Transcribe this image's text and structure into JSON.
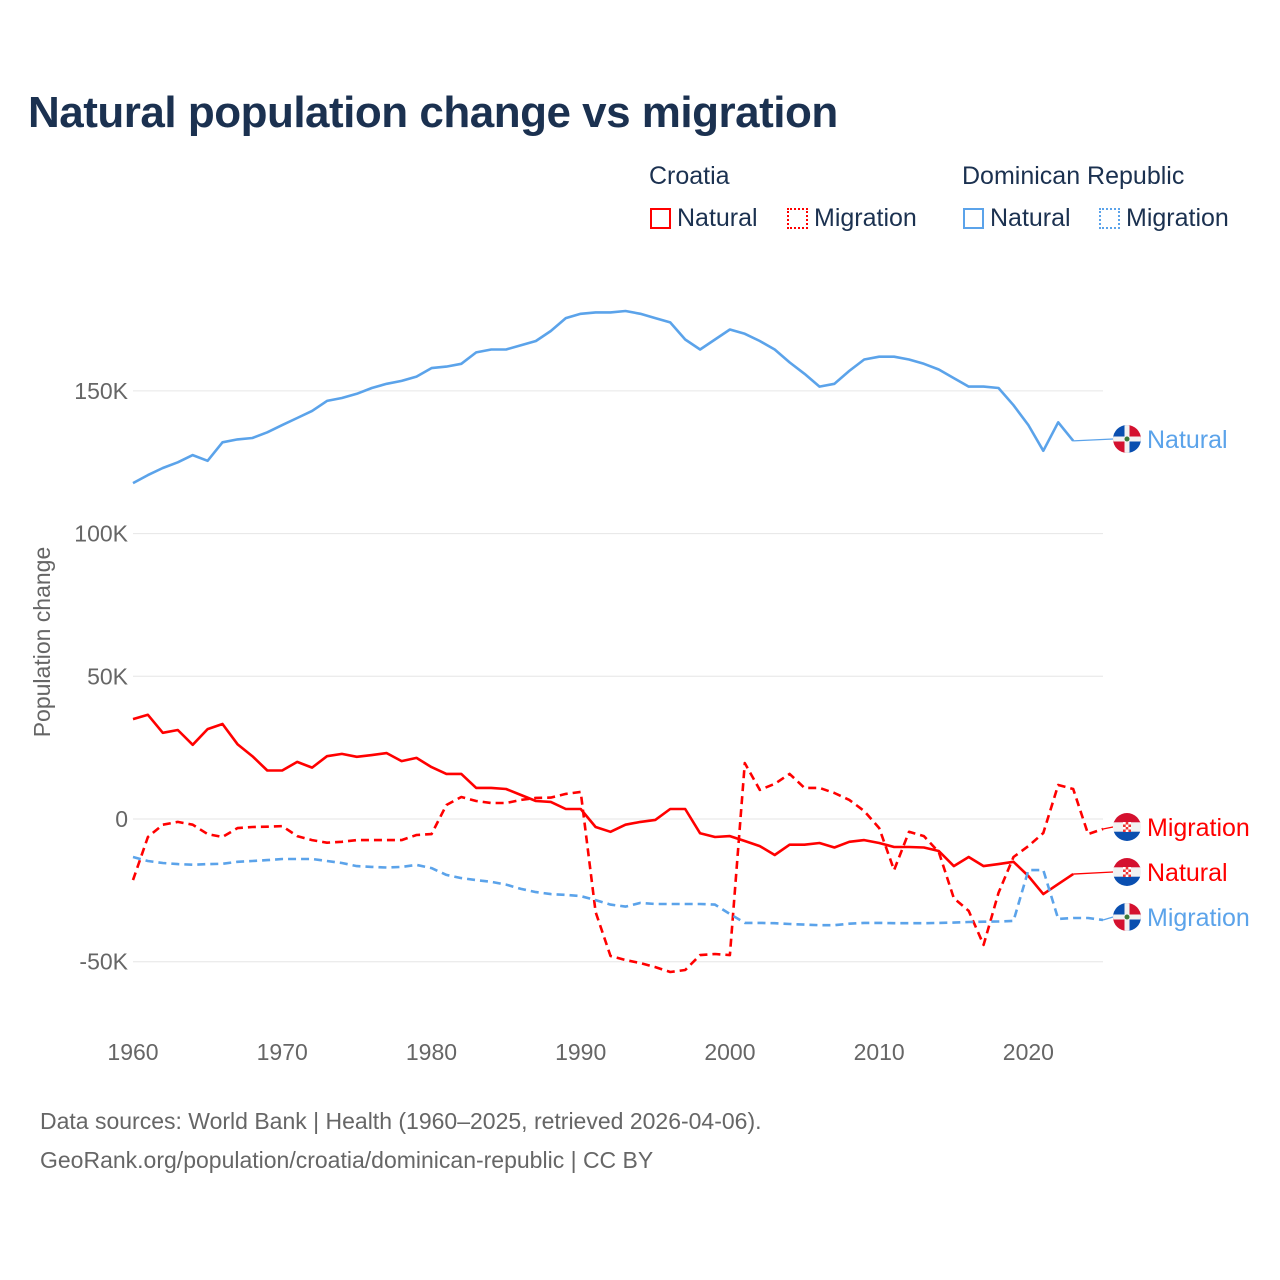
{
  "title": "Natural population change vs migration",
  "legend": {
    "groups": [
      {
        "name": "Croatia",
        "items": [
          {
            "label": "Natural",
            "style": "solid"
          },
          {
            "label": "Migration",
            "style": "dotted"
          }
        ],
        "color": "#ff0000"
      },
      {
        "name": "Dominican Republic",
        "items": [
          {
            "label": "Natural",
            "style": "solid"
          },
          {
            "label": "Migration",
            "style": "dotted"
          }
        ],
        "color": "#5ba3ea"
      }
    ]
  },
  "footer": {
    "line1": "Data sources: World Bank | Health (1960–2025, retrieved 2026-04-06).",
    "line2": "GeoRank.org/population/croatia/dominican-republic | CC BY"
  },
  "chart_data": {
    "type": "line",
    "title": "Natural population change vs migration",
    "xlabel": "",
    "ylabel": "Population change",
    "xlim": [
      1960,
      2025
    ],
    "ylim": [
      -60000,
      185000
    ],
    "x_ticks": [
      1960,
      1970,
      1980,
      1990,
      2000,
      2010,
      2020
    ],
    "x_tick_labels": [
      "1960",
      "1970",
      "1980",
      "1990",
      "2000",
      "2010",
      "2020"
    ],
    "y_ticks": [
      -50000,
      0,
      50000,
      100000,
      150000
    ],
    "y_tick_labels": [
      "-50K",
      "0",
      "50K",
      "100K",
      "150K"
    ],
    "grid": true,
    "legend_position": "top-right",
    "x_start": 1960,
    "series": [
      {
        "name": "Dominican Republic Natural",
        "country": "Dominican Republic",
        "end_label": "Natural",
        "flag": "dominican-republic",
        "color": "#5ba3ea",
        "dash": "solid",
        "values_k": [
          117.7,
          120.5,
          123,
          125,
          127.5,
          125.5,
          132,
          133,
          133.5,
          135.5,
          138,
          140.5,
          143,
          146.5,
          147.5,
          149,
          151,
          152.5,
          153.5,
          155,
          158,
          158.5,
          159.5,
          163.5,
          164.5,
          164.5,
          166,
          167.5,
          171,
          175.5,
          177,
          177.5,
          177.5,
          178,
          177,
          175.5,
          174,
          168,
          164.5,
          168,
          171.5,
          170,
          167.5,
          164.5,
          160,
          156,
          151.5,
          152.5,
          157,
          161,
          162,
          162,
          161,
          159.5,
          157.5,
          154.5,
          151.5,
          151.5,
          151,
          145,
          138,
          129,
          139,
          132.5
        ]
      },
      {
        "name": "Croatia Migration",
        "country": "Croatia",
        "end_label": "Migration",
        "flag": "croatia",
        "color": "#ff0000",
        "dash": "dashed",
        "values_k": [
          -21.4,
          -6.3,
          -2,
          -1,
          -2,
          -5.3,
          -6.3,
          -3.2,
          -2.8,
          -2.7,
          -2.5,
          -6,
          -7.4,
          -8.3,
          -8,
          -7.4,
          -7.4,
          -7.4,
          -7.4,
          -5.6,
          -5.3,
          4.9,
          7.7,
          6.3,
          5.6,
          5.6,
          6.7,
          7.4,
          7.5,
          8.8,
          9.5,
          -32.6,
          -48,
          -49.4,
          -50.5,
          -51.9,
          -53.6,
          -52.9,
          -47.7,
          -47.3,
          -47.7,
          19.6,
          10.2,
          12.3,
          15.8,
          10.9,
          10.9,
          9.1,
          6.7,
          2.8,
          -3.2,
          -17.9,
          -4.5,
          -6,
          -11.6,
          -27.7,
          -32.2,
          -44.1,
          -25.9,
          -13.3,
          -9.5,
          -4.9,
          11.9,
          10.5,
          -5.3,
          -3.5
        ]
      },
      {
        "name": "Croatia Natural",
        "country": "Croatia",
        "end_label": "Natural",
        "flag": "croatia",
        "color": "#ff0000",
        "dash": "solid",
        "values_k": [
          35,
          36.5,
          30.2,
          31.2,
          26,
          31.5,
          33.3,
          26.2,
          22,
          17,
          17,
          20,
          18,
          22,
          22.8,
          21.8,
          22.4,
          23.1,
          20.3,
          21.4,
          18.2,
          15.8,
          15.8,
          10.9,
          10.9,
          10.5,
          8.4,
          6.3,
          6,
          3.5,
          3.5,
          -2.8,
          -4.5,
          -2,
          -1,
          -0.3,
          3.5,
          3.5,
          -5,
          -6.3,
          -6,
          -7.7,
          -9.5,
          -12.6,
          -9,
          -9,
          -8.4,
          -10,
          -8,
          -7.4,
          -8.4,
          -9.8,
          -9.8,
          -10,
          -11.2,
          -16.5,
          -13.3,
          -16.5,
          -15.8,
          -15,
          -20,
          -26.3,
          -22.8,
          -19.3
        ]
      },
      {
        "name": "Dominican Republic Migration",
        "country": "Dominican Republic",
        "end_label": "Migration",
        "flag": "dominican-republic",
        "color": "#5ba3ea",
        "dash": "dashed",
        "values_k": [
          -13.3,
          -14.7,
          -15.4,
          -15.8,
          -16,
          -15.8,
          -15.7,
          -15,
          -14.7,
          -14.4,
          -14,
          -14,
          -14,
          -14.7,
          -15.4,
          -16.5,
          -16.8,
          -17,
          -16.8,
          -16.1,
          -17.2,
          -19.6,
          -20.7,
          -21.4,
          -22,
          -23,
          -24.5,
          -25.6,
          -26.3,
          -26.6,
          -27,
          -28.4,
          -30,
          -30.7,
          -29.4,
          -29.8,
          -29.8,
          -29.8,
          -29.8,
          -30,
          -33.3,
          -36.4,
          -36.4,
          -36.5,
          -36.8,
          -37,
          -37.2,
          -37.2,
          -36.7,
          -36.4,
          -36.4,
          -36.5,
          -36.5,
          -36.5,
          -36.4,
          -36.3,
          -36.1,
          -36,
          -35.9,
          -35.7,
          -17.9,
          -17.9,
          -35,
          -34.7,
          -34.7,
          -35.4
        ]
      }
    ]
  }
}
